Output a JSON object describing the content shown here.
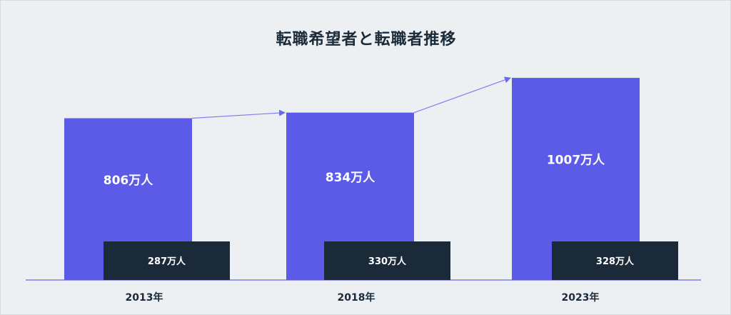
{
  "chart_data": {
    "type": "bar",
    "title": "転職希望者と転職者推移",
    "categories": [
      "2013年",
      "2018年",
      "2023年"
    ],
    "series": [
      {
        "values": [
          806,
          834,
          1007
        ],
        "labels": [
          "806万人",
          "834万人",
          "1007万人"
        ]
      },
      {
        "values": [
          287,
          330,
          328
        ],
        "labels": [
          "287万人",
          "330万人",
          "328万人"
        ]
      }
    ],
    "ylim": [
      0,
      1000
    ],
    "grid": false,
    "trend_arrows": true,
    "colors": {
      "primary": "#5b5be8",
      "secondary": "#1b2a38",
      "background": "#edf0f2",
      "axis": "#7f7fea"
    }
  }
}
